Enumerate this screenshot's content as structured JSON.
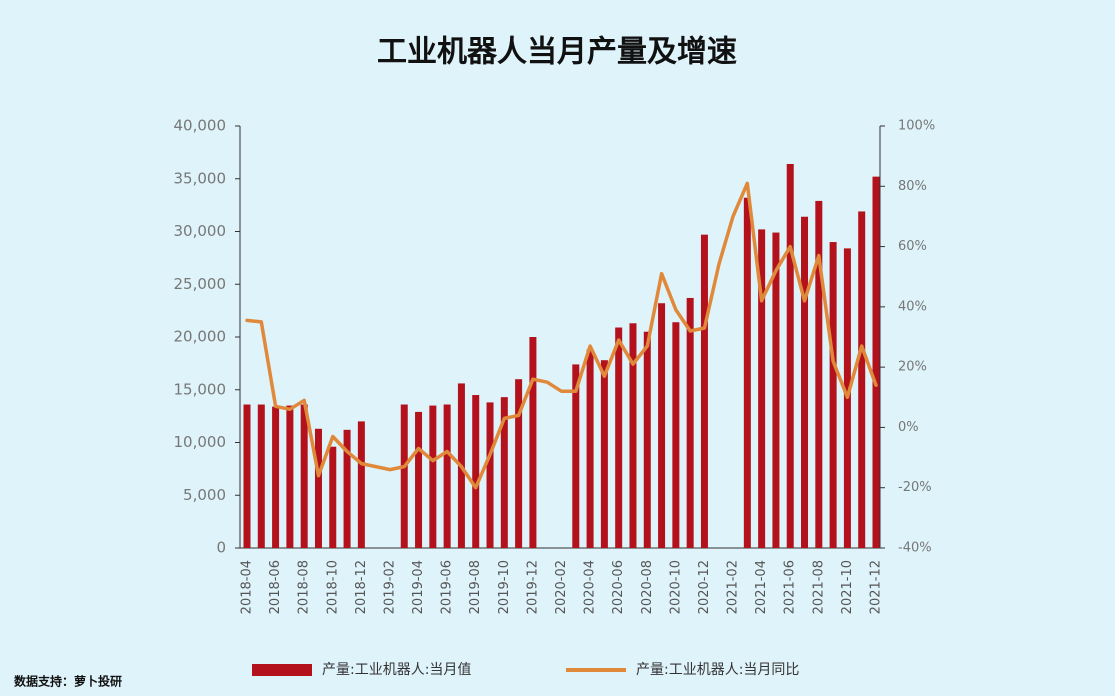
{
  "chart_data": {
    "type": "bar-line",
    "title": "工业机器人当月产量及增速",
    "source": "数据支持：萝卜投研",
    "categories": [
      "2018-04",
      null,
      "2018-06",
      null,
      "2018-08",
      null,
      "2018-10",
      null,
      "2018-12",
      null,
      "2019-02",
      null,
      "2019-04",
      null,
      "2019-06",
      null,
      "2019-08",
      null,
      "2019-10",
      null,
      "2019-12",
      null,
      "2020-02",
      null,
      "2020-04",
      null,
      "2020-06",
      null,
      "2020-08",
      null,
      "2020-10",
      null,
      "2020-12",
      null,
      "2021-02",
      null,
      "2021-04",
      null,
      "2021-06",
      null,
      "2021-08",
      null,
      "2021-10",
      null,
      "2021-12"
    ],
    "series": [
      {
        "name": "产量:工业机器人:当月值",
        "type": "bar",
        "color": "#b3121c",
        "values": [
          13600,
          13600,
          13400,
          13500,
          13600,
          11300,
          9600,
          11200,
          12000,
          null,
          null,
          13600,
          12900,
          13500,
          13600,
          15600,
          14500,
          13800,
          14300,
          16000,
          20000,
          null,
          null,
          17400,
          18800,
          17800,
          20900,
          21300,
          20500,
          23200,
          21400,
          23700,
          29700,
          null,
          null,
          33200,
          30200,
          29900,
          36400,
          31400,
          32900,
          29000,
          28400,
          31900,
          35200
        ]
      },
      {
        "name": "产量:工业机器人:当月同比",
        "type": "line",
        "axis": "y2",
        "color": "#e0893a",
        "values": [
          35.5,
          35,
          7,
          6,
          9,
          -16,
          -3,
          -8,
          -12,
          -13,
          -14,
          -13,
          -7,
          -11,
          -8,
          -13,
          -20,
          -9,
          3,
          4,
          16,
          15,
          12,
          12,
          27,
          17,
          29,
          21,
          27,
          51,
          39,
          32,
          33,
          54,
          70,
          81,
          42,
          52,
          60,
          42,
          57,
          22,
          10,
          27,
          14
        ]
      }
    ],
    "ylim": [
      0,
      40000
    ],
    "yticks": [
      0,
      {
        "value": 5000,
        "label": "5,000"
      },
      {
        "value": 10000,
        "label": "10,000"
      },
      {
        "value": 15000,
        "label": "15,000"
      },
      {
        "value": 20000,
        "label": "20,000"
      },
      {
        "value": 25000,
        "label": "25,000"
      },
      {
        "value": 30000,
        "label": "30,000"
      },
      {
        "value": 35000,
        "label": "35,000"
      },
      {
        "value": 40000,
        "label": "40,000"
      }
    ],
    "y2lim": [
      -40,
      100
    ],
    "y2ticks": [
      {
        "value": -40,
        "label": "-40%"
      },
      {
        "value": -20,
        "label": "-20%"
      },
      {
        "value": 0,
        "label": "0%"
      },
      {
        "value": 20,
        "label": "20%"
      },
      {
        "value": 40,
        "label": "40%"
      },
      {
        "value": 60,
        "label": "60%"
      },
      {
        "value": 80,
        "label": "80%"
      },
      {
        "value": 100,
        "label": "100%"
      }
    ],
    "legend": "bottom"
  }
}
